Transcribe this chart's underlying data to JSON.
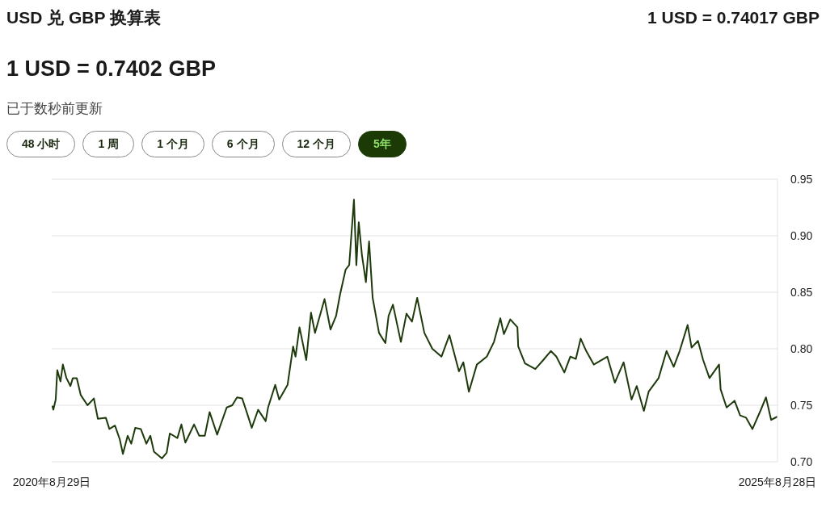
{
  "chart_data": {
    "type": "line",
    "title": "USD 兑 GBP 换算表",
    "subtitle": "1 USD = 0.7402 GBP",
    "annotations": [
      "1 USD = 0.74017 GBP",
      "已于数秒前更新",
      "48 小时",
      "1 周",
      "1 个月",
      "6 个月",
      "12 个月",
      "5年"
    ],
    "x": [
      "2020-08-29",
      "2020-08-31",
      "2020-09-02",
      "2020-09-08",
      "2020-09-12",
      "2020-09-20",
      "2020-09-26",
      "2020-10-05",
      "2020-10-15",
      "2020-10-21",
      "2020-10-31",
      "2020-11-10",
      "2020-11-27",
      "2020-12-13",
      "2020-12-23",
      "2021-01-12",
      "2021-01-21",
      "2021-02-04",
      "2021-02-16",
      "2021-02-24",
      "2021-03-08",
      "2021-03-17",
      "2021-03-27",
      "2021-04-10",
      "2021-04-24",
      "2021-05-04",
      "2021-05-13",
      "2021-06-02",
      "2021-06-14",
      "2021-06-22",
      "2021-07-11",
      "2021-07-21",
      "2021-07-31",
      "2021-08-22",
      "2021-09-04",
      "2021-09-18",
      "2021-09-30",
      "2021-10-19",
      "2021-11-12",
      "2021-11-26",
      "2021-12-08",
      "2021-12-21",
      "2022-01-04",
      "2022-01-14",
      "2022-01-30",
      "2022-02-18",
      "2022-02-24",
      "2022-03-14",
      "2022-03-24",
      "2022-04-14",
      "2022-04-28",
      "2022-05-04",
      "2022-05-14",
      "2022-05-31",
      "2022-06-12",
      "2022-06-22",
      "2022-07-16",
      "2022-07-31",
      "2022-08-14",
      "2022-08-24",
      "2022-09-07",
      "2022-09-16",
      "2022-09-28",
      "2022-10-04",
      "2022-10-10",
      "2022-10-18",
      "2022-10-28",
      "2022-11-05",
      "2022-11-14",
      "2022-11-30",
      "2022-12-16",
      "2022-12-24",
      "2023-01-04",
      "2023-01-24",
      "2023-02-07",
      "2023-02-21",
      "2023-03-06",
      "2023-03-24",
      "2023-04-13",
      "2023-05-06",
      "2023-05-26",
      "2023-06-19",
      "2023-06-30",
      "2023-07-14",
      "2023-08-03",
      "2023-08-28",
      "2023-09-15",
      "2023-10-01",
      "2023-10-10",
      "2023-10-26",
      "2023-11-13",
      "2023-11-15",
      "2023-12-02",
      "2023-12-28",
      "2024-01-17",
      "2024-02-05",
      "2024-02-19",
      "2024-03-10",
      "2024-03-25",
      "2024-04-08",
      "2024-04-20",
      "2024-05-04",
      "2024-05-23",
      "2024-06-26",
      "2024-07-15",
      "2024-08-06",
      "2024-08-26",
      "2024-09-08",
      "2024-09-26",
      "2024-10-08",
      "2024-11-02",
      "2024-11-22",
      "2024-12-10",
      "2024-12-25",
      "2025-01-14",
      "2025-01-24",
      "2025-02-09",
      "2025-02-22",
      "2025-03-10",
      "2025-04-03",
      "2025-04-07",
      "2025-04-22",
      "2025-05-12",
      "2025-05-26",
      "2025-06-10",
      "2025-06-26",
      "2025-07-16",
      "2025-07-30",
      "2025-08-12",
      "2025-08-28"
    ],
    "series": [
      {
        "color": "#1e3a0c",
        "values": [
          0.749,
          0.749,
          0.746,
          0.755,
          0.781,
          0.771,
          0.786,
          0.774,
          0.767,
          0.774,
          0.774,
          0.759,
          0.75,
          0.756,
          0.738,
          0.739,
          0.729,
          0.732,
          0.72,
          0.707,
          0.723,
          0.716,
          0.73,
          0.729,
          0.716,
          0.723,
          0.709,
          0.703,
          0.708,
          0.725,
          0.721,
          0.733,
          0.717,
          0.733,
          0.723,
          0.723,
          0.744,
          0.724,
          0.748,
          0.75,
          0.757,
          0.756,
          0.741,
          0.73,
          0.746,
          0.736,
          0.748,
          0.768,
          0.755,
          0.768,
          0.802,
          0.793,
          0.819,
          0.79,
          0.832,
          0.814,
          0.844,
          0.817,
          0.829,
          0.848,
          0.87,
          0.874,
          0.932,
          0.874,
          0.912,
          0.883,
          0.859,
          0.895,
          0.845,
          0.814,
          0.805,
          0.829,
          0.839,
          0.806,
          0.831,
          0.824,
          0.845,
          0.814,
          0.8,
          0.793,
          0.812,
          0.78,
          0.788,
          0.762,
          0.786,
          0.793,
          0.806,
          0.827,
          0.813,
          0.826,
          0.819,
          0.802,
          0.787,
          0.782,
          0.79,
          0.798,
          0.793,
          0.779,
          0.793,
          0.791,
          0.809,
          0.798,
          0.786,
          0.793,
          0.77,
          0.788,
          0.755,
          0.767,
          0.745,
          0.762,
          0.774,
          0.798,
          0.784,
          0.798,
          0.821,
          0.801,
          0.807,
          0.79,
          0.774,
          0.786,
          0.764,
          0.748,
          0.754,
          0.741,
          0.739,
          0.729,
          0.745,
          0.757,
          0.737,
          0.74
        ]
      }
    ],
    "xlim": [
      "2020-08-29",
      "2025-08-28"
    ],
    "xticks": [
      {
        "value": "2020-08-29",
        "label": "2020年8月29日"
      },
      {
        "value": "2025-08-28",
        "label": "2025年8月28日"
      }
    ],
    "ylim": [
      0.7,
      0.95
    ],
    "yticks": [
      {
        "value": 0.7,
        "label": "0.70"
      },
      0.75,
      {
        "value": 0.8,
        "label": "0.80"
      },
      0.85,
      {
        "value": 0.9,
        "label": "0.90"
      },
      0.95
    ],
    "grid": "y"
  }
}
